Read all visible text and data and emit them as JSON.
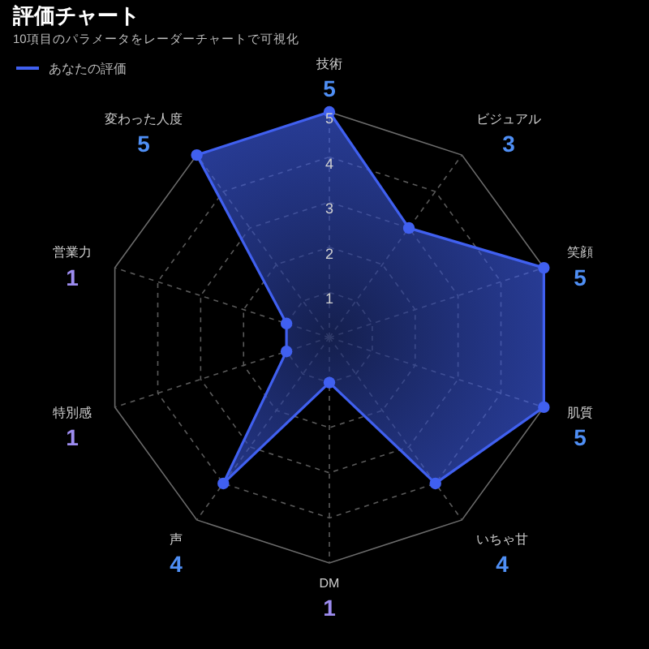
{
  "chart_data": {
    "type": "radar",
    "title": "評価チャート",
    "subtitle": "10項目のパラメータをレーダーチャートで可視化",
    "categories": [
      "技術\n5",
      "ビジュアル\n3",
      "笑顔\n5",
      "肌質\n5",
      "いちゃ甘\n4",
      "DM\n1",
      "声\n4",
      "特別感\n1",
      "営業力\n1",
      "変わった人度\n5"
    ],
    "series": [
      {
        "name": "あなたの評価",
        "color": "#4060f0",
        "values": [
          5,
          3,
          5,
          5,
          4,
          1,
          4,
          1,
          1,
          5
        ]
      }
    ],
    "ylim": [
      0,
      5
    ],
    "yticks": [
      1,
      2,
      3,
      4,
      5
    ],
    "grid": true,
    "legend": "top left",
    "marker": "circle"
  }
}
